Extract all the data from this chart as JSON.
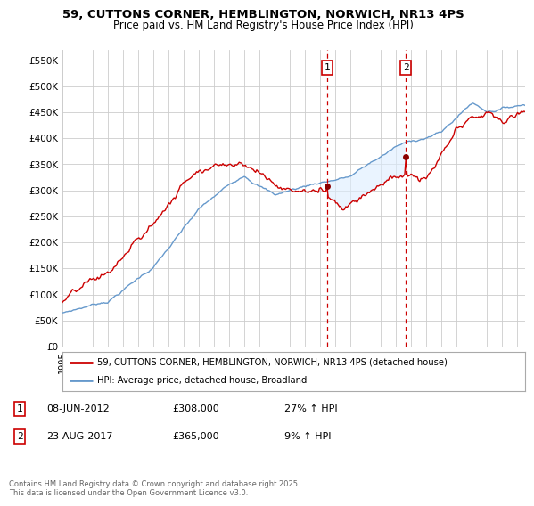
{
  "title_line1": "59, CUTTONS CORNER, HEMBLINGTON, NORWICH, NR13 4PS",
  "title_line2": "Price paid vs. HM Land Registry's House Price Index (HPI)",
  "ylabel_ticks": [
    "£0",
    "£50K",
    "£100K",
    "£150K",
    "£200K",
    "£250K",
    "£300K",
    "£350K",
    "£400K",
    "£450K",
    "£500K",
    "£550K"
  ],
  "ytick_values": [
    0,
    50000,
    100000,
    150000,
    200000,
    250000,
    300000,
    350000,
    400000,
    450000,
    500000,
    550000
  ],
  "ylim": [
    0,
    570000
  ],
  "xlim_start": 1995.0,
  "xlim_end": 2025.5,
  "sale1_x": 2012.44,
  "sale1_y": 308000,
  "sale2_x": 2017.64,
  "sale2_y": 365000,
  "line_color_property": "#cc0000",
  "line_color_hpi": "#6699cc",
  "hpi_fill_color": "#ddeeff",
  "legend_label_property": "59, CUTTONS CORNER, HEMBLINGTON, NORWICH, NR13 4PS (detached house)",
  "legend_label_hpi": "HPI: Average price, detached house, Broadland",
  "sale1_date": "08-JUN-2012",
  "sale1_price": "£308,000",
  "sale1_hpi": "27% ↑ HPI",
  "sale2_date": "23-AUG-2017",
  "sale2_price": "£365,000",
  "sale2_hpi": "9% ↑ HPI",
  "footnote": "Contains HM Land Registry data © Crown copyright and database right 2025.\nThis data is licensed under the Open Government Licence v3.0.",
  "background_color": "#ffffff",
  "grid_color": "#cccccc"
}
